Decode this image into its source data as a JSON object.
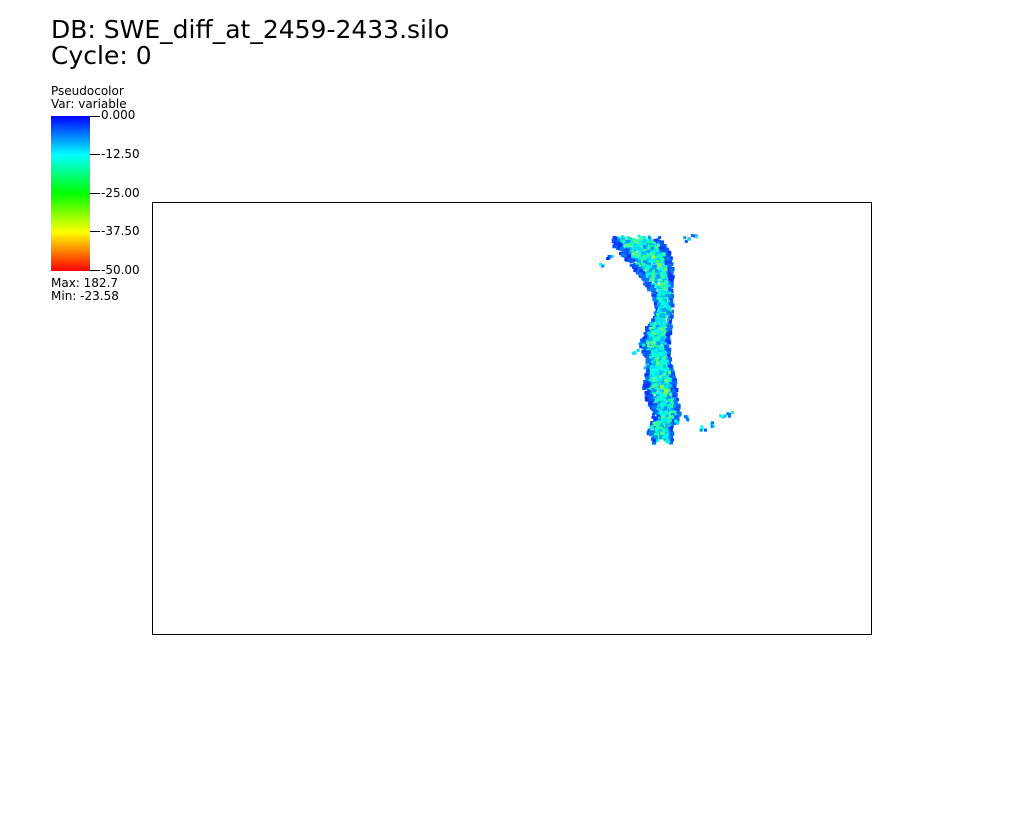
{
  "header": {
    "db_title": "DB: SWE_diff_at_2459-2433.silo",
    "cycle": "Cycle: 0"
  },
  "legend": {
    "plot_type": "Pseudocolor",
    "var_label": "Var: variable",
    "ticks": [
      "0.000",
      "-12.50",
      "-25.00",
      "-37.50",
      "-50.00"
    ],
    "max_label": "Max:  182.7",
    "min_label": "Min: -23.58",
    "colors": [
      "#0000ff",
      "#00ffff",
      "#00ff00",
      "#ffff00",
      "#ff0000"
    ]
  }
}
